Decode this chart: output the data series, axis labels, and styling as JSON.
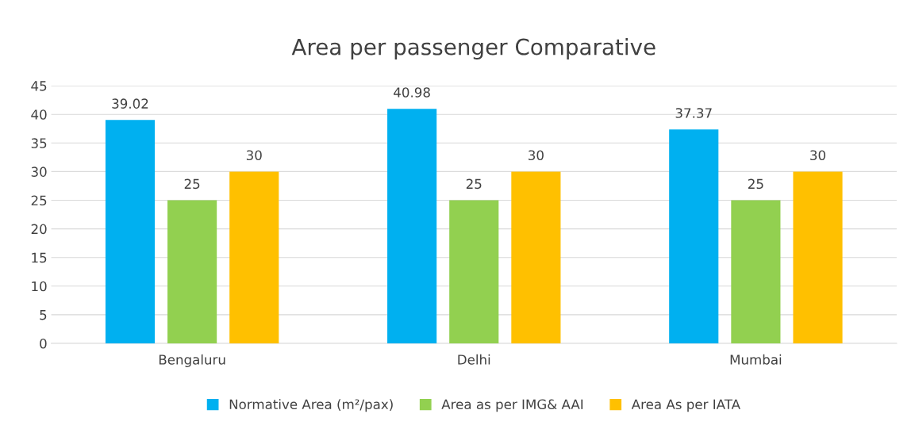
{
  "chart_data": {
    "type": "bar",
    "title": "Area per passenger Comparative",
    "categories": [
      "Bengaluru",
      "Delhi",
      "Mumbai"
    ],
    "series": [
      {
        "name": "Normative Area (m²/pax)",
        "color": "#00b0f0",
        "values": [
          39.02,
          40.98,
          37.37
        ]
      },
      {
        "name": "Area as per IMG& AAI",
        "color": "#92d050",
        "values": [
          25,
          25,
          25
        ]
      },
      {
        "name": "Area As per IATA",
        "color": "#ffc000",
        "values": [
          30,
          30,
          30
        ]
      }
    ],
    "ylim": [
      0,
      45
    ],
    "yticks": [
      0,
      5,
      10,
      15,
      20,
      25,
      30,
      35,
      40,
      45
    ],
    "grid": "y",
    "legend": "bottom",
    "data_labels": true
  }
}
